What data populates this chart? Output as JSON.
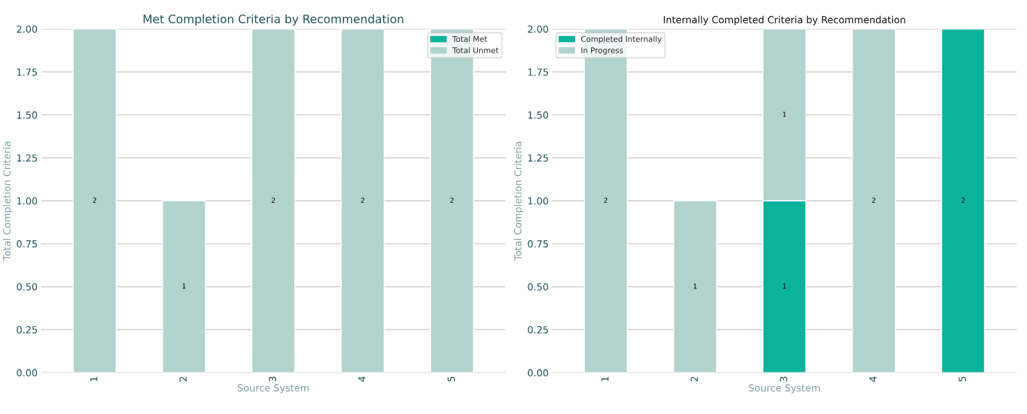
{
  "chart_data": [
    {
      "type": "bar",
      "title": "Met Completion Criteria by Recommendation",
      "xlabel": "Source System",
      "ylabel": "Total Completion Criteria",
      "categories": [
        "1",
        "2",
        "3",
        "4",
        "5"
      ],
      "stacked": true,
      "series": [
        {
          "name": "Total Met",
          "color": "#0bb39c",
          "values": [
            0,
            0,
            0,
            0,
            0
          ],
          "value_labels": [
            null,
            null,
            null,
            null,
            null
          ]
        },
        {
          "name": "Total Unmet",
          "color": "#b2d3ce",
          "values": [
            2,
            1,
            2,
            2,
            2
          ],
          "value_labels": [
            "2",
            "1",
            "2",
            "2",
            "2"
          ]
        }
      ],
      "ylim": [
        0,
        2.0
      ],
      "yticks": [
        {
          "value": 0,
          "label": "0.00"
        },
        {
          "value": 0.25,
          "label": "0.25"
        },
        {
          "value": 0.5,
          "label": "0.50"
        },
        {
          "value": 0.75,
          "label": "0.75"
        },
        {
          "value": 1.0,
          "label": "1.00"
        },
        {
          "value": 1.25,
          "label": "1.25"
        },
        {
          "value": 1.5,
          "label": "1.50"
        },
        {
          "value": 1.75,
          "label": "1.75"
        },
        {
          "value": 2.0,
          "label": "2.00"
        }
      ],
      "grid": "y",
      "legend": "top right"
    },
    {
      "type": "bar",
      "title": "Internally Completed Criteria by Recommendation",
      "xlabel": "Source System",
      "ylabel": "Total Completion Criteria",
      "categories": [
        "1",
        "2",
        "3",
        "4",
        "5"
      ],
      "stacked": true,
      "series": [
        {
          "name": "Completed Internally",
          "color": "#0bb39c",
          "values": [
            0,
            0,
            1,
            0,
            2
          ],
          "value_labels": [
            null,
            null,
            "1",
            null,
            "2"
          ]
        },
        {
          "name": "In Progress",
          "color": "#b2d3ce",
          "values": [
            2,
            1,
            1,
            2,
            0
          ],
          "value_labels": [
            "2",
            "1",
            "1",
            "2",
            null
          ]
        }
      ],
      "ylim": [
        0,
        2.0
      ],
      "yticks": [
        {
          "value": 0,
          "label": "0.00"
        },
        {
          "value": 0.25,
          "label": "0.25"
        },
        {
          "value": 0.5,
          "label": "0.50"
        },
        {
          "value": 0.75,
          "label": "0.75"
        },
        {
          "value": 1.0,
          "label": "1.00"
        },
        {
          "value": 1.25,
          "label": "1.25"
        },
        {
          "value": 1.5,
          "label": "1.50"
        },
        {
          "value": 1.75,
          "label": "1.75"
        },
        {
          "value": 2.0,
          "label": "2.00"
        }
      ],
      "grid": "y",
      "legend": "top left"
    }
  ]
}
